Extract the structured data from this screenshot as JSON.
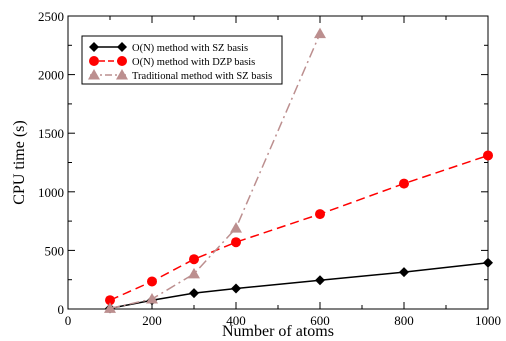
{
  "chart_data": {
    "type": "line",
    "title": "",
    "xlabel": "Number of atoms",
    "ylabel": "CPU time (s)",
    "xlim": [
      0,
      1000
    ],
    "ylim": [
      0,
      2500
    ],
    "xticks": [
      0,
      200,
      400,
      600,
      800,
      1000
    ],
    "yticks": [
      0,
      500,
      1000,
      1500,
      2000,
      2500
    ],
    "grid": false,
    "legend_position": "top-left",
    "series": [
      {
        "name": "O(N) method with SZ basis",
        "color": "#000000",
        "marker": "diamond",
        "linestyle": "solid",
        "x": [
          100,
          200,
          300,
          400,
          600,
          800,
          1000
        ],
        "y": [
          5,
          75,
          135,
          175,
          245,
          315,
          395
        ]
      },
      {
        "name": "O(N) method with DZP basis",
        "color": "#ff0000",
        "marker": "circle",
        "linestyle": "dashed",
        "x": [
          100,
          200,
          300,
          400,
          600,
          800,
          1000
        ],
        "y": [
          75,
          235,
          425,
          570,
          810,
          1070,
          1310
        ]
      },
      {
        "name": "Traditional method with SZ basis",
        "color": "#bc8f8f",
        "marker": "triangle",
        "linestyle": "dashdot",
        "x": [
          100,
          200,
          300,
          400,
          600
        ],
        "y": [
          5,
          85,
          300,
          690,
          2350
        ]
      }
    ]
  }
}
